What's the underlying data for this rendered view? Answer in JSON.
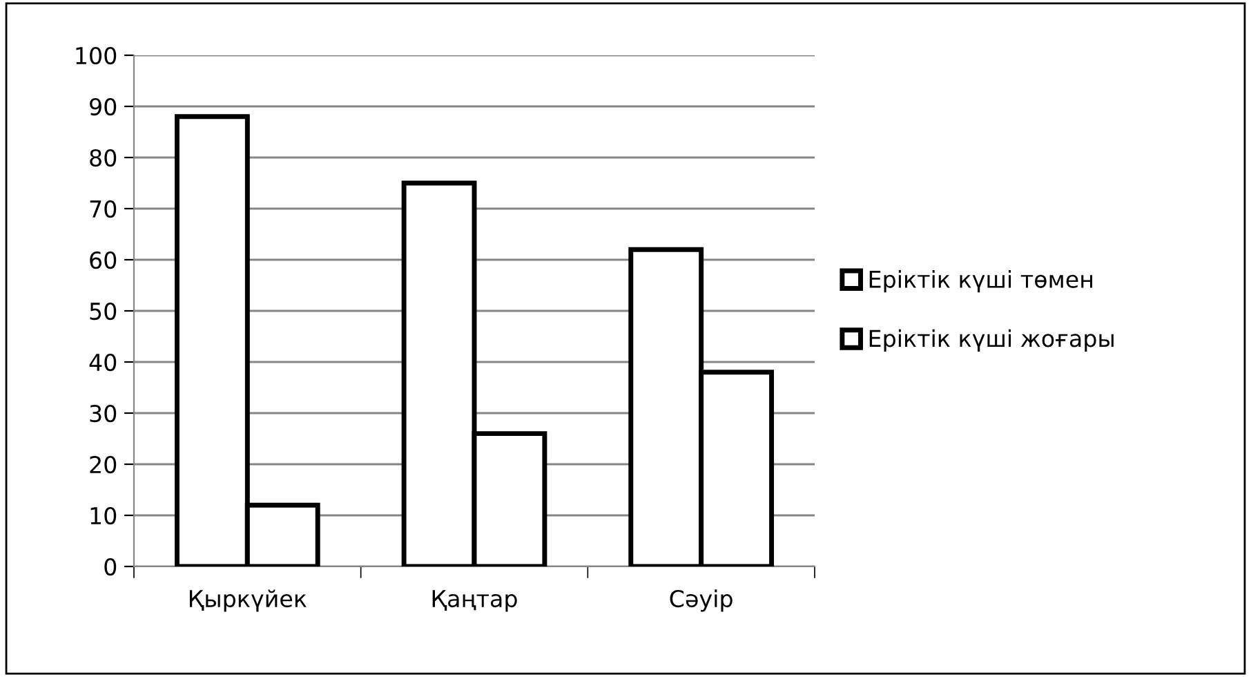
{
  "chart_data": {
    "type": "bar",
    "categories": [
      "Қыркүйек",
      "Қаңтар",
      "Сәуір"
    ],
    "series": [
      {
        "name": "Еріктік күші төмен",
        "color": "#ffffff",
        "values": [
          88,
          75,
          62
        ]
      },
      {
        "name": "Еріктік күші жоғары",
        "color": "#ffffff",
        "values": [
          12,
          26,
          38
        ]
      }
    ],
    "ylim": [
      0,
      100
    ],
    "yticks": [
      0,
      10,
      20,
      30,
      40,
      50,
      60,
      70,
      80,
      90,
      100
    ],
    "grid": "y",
    "legend": "right"
  }
}
